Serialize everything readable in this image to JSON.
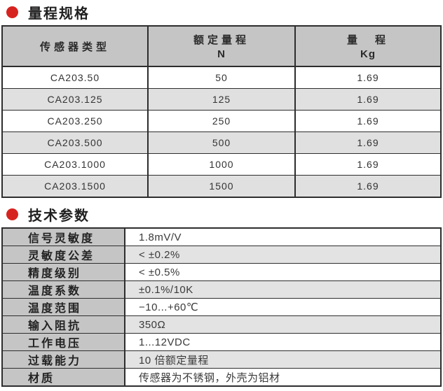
{
  "colors": {
    "accent_red": "#d7231f",
    "header_gray": "#c5c5c5",
    "row_alt_gray": "#e0e0e0",
    "value_alt_gray": "#e3e3e3",
    "border_dark": "#2d2d2d"
  },
  "sections": {
    "range": {
      "title": "量程规格"
    },
    "params": {
      "title": "技术参数"
    }
  },
  "range_table": {
    "headers": {
      "col1": {
        "line1": "传感器类型"
      },
      "col2": {
        "line1": "额定量程",
        "line2": "N"
      },
      "col3": {
        "line1": "量　程",
        "line2": "Kg"
      }
    },
    "rows": [
      {
        "model": "CA203.50",
        "range_n": "50",
        "range_kg": "1.69"
      },
      {
        "model": "CA203.125",
        "range_n": "125",
        "range_kg": "1.69"
      },
      {
        "model": "CA203.250",
        "range_n": "250",
        "range_kg": "1.69"
      },
      {
        "model": "CA203.500",
        "range_n": "500",
        "range_kg": "1.69"
      },
      {
        "model": "CA203.1000",
        "range_n": "1000",
        "range_kg": "1.69"
      },
      {
        "model": "CA203.1500",
        "range_n": "1500",
        "range_kg": "1.69"
      }
    ]
  },
  "params_table": {
    "rows": [
      {
        "label": "信号灵敏度",
        "value": "1.8mV/V"
      },
      {
        "label": "灵敏度公差",
        "value": "< ±0.2%"
      },
      {
        "label": "精度级别",
        "value": "< ±0.5%"
      },
      {
        "label": "温度系数",
        "value": "±0.1%/10K"
      },
      {
        "label": "温度范围",
        "value": "−10...+60℃"
      },
      {
        "label": "输入阻抗",
        "value": "350Ω"
      },
      {
        "label": "工作电压",
        "value": "1...12VDC"
      },
      {
        "label": "过载能力",
        "value": "10 倍额定量程"
      },
      {
        "label": "材质",
        "value": "传感器为不锈钢，外壳为铝材"
      }
    ]
  }
}
